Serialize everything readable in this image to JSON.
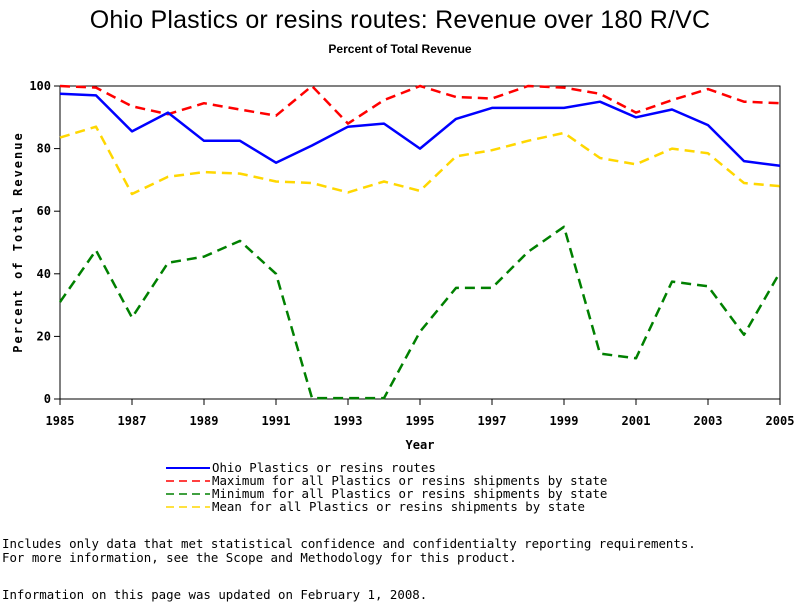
{
  "chart_data": {
    "type": "line",
    "title": "Ohio Plastics or resins routes: Revenue over 180 R/VC",
    "subtitle": "Percent of Total Revenue",
    "xlabel": "Year",
    "ylabel": "Percent of Total Revenue",
    "xlim": [
      1985,
      2005
    ],
    "ylim": [
      0,
      100
    ],
    "x_ticks": [
      "1985",
      "1987",
      "1989",
      "1991",
      "1993",
      "1995",
      "1997",
      "1999",
      "2001",
      "2003",
      "2005"
    ],
    "y_ticks": [
      "0",
      "20",
      "40",
      "60",
      "80",
      "100"
    ],
    "grid": false,
    "legend_position": "bottom",
    "x": [
      1985,
      1986,
      1987,
      1988,
      1989,
      1990,
      1991,
      1992,
      1993,
      1994,
      1995,
      1996,
      1997,
      1998,
      1999,
      2000,
      2001,
      2002,
      2003,
      2004,
      2005
    ],
    "series": [
      {
        "name": "Ohio Plastics or resins routes",
        "color": "#0000ff",
        "dash": "solid",
        "values": [
          97.5,
          97,
          85.5,
          91.5,
          82.5,
          82.5,
          75.5,
          81,
          87,
          88,
          80,
          89.5,
          93,
          93,
          93,
          95,
          90,
          92.5,
          87.5,
          76,
          74.5
        ]
      },
      {
        "name": "Maximum for all Plastics or resins shipments by state",
        "color": "#ff0000",
        "dash": "dashed",
        "values": [
          100,
          99.5,
          93.5,
          91,
          94.5,
          92.5,
          90.5,
          100,
          88,
          95.5,
          100,
          96.5,
          96,
          100,
          99.5,
          97.5,
          91.5,
          95.5,
          99,
          95,
          94.5
        ]
      },
      {
        "name": "Minimum for all Plastics or resins shipments by state",
        "color": "#008000",
        "dash": "dashed",
        "values": [
          31,
          47.5,
          26,
          43.5,
          45.5,
          50.5,
          40,
          0.3,
          0.3,
          0.3,
          21.5,
          35.5,
          35.5,
          47,
          55,
          14.5,
          13,
          37.5,
          36,
          20.5,
          40.5
        ]
      },
      {
        "name": "Mean for all Plastics or resins shipments by state",
        "color": "#ffd700",
        "dash": "dashed",
        "values": [
          83.5,
          87,
          65.5,
          71,
          72.5,
          72,
          69.5,
          69,
          66,
          69.5,
          66.5,
          77.5,
          79.5,
          82.5,
          85,
          77,
          75,
          80,
          78.5,
          69,
          68
        ]
      }
    ]
  },
  "footnote": {
    "line1": "Includes only data that met statistical confidence and confidentialty reporting requirements.",
    "line2": "For more information, see the Scope and Methodology for this product."
  },
  "updated": "Information on this page was updated on February 1, 2008."
}
